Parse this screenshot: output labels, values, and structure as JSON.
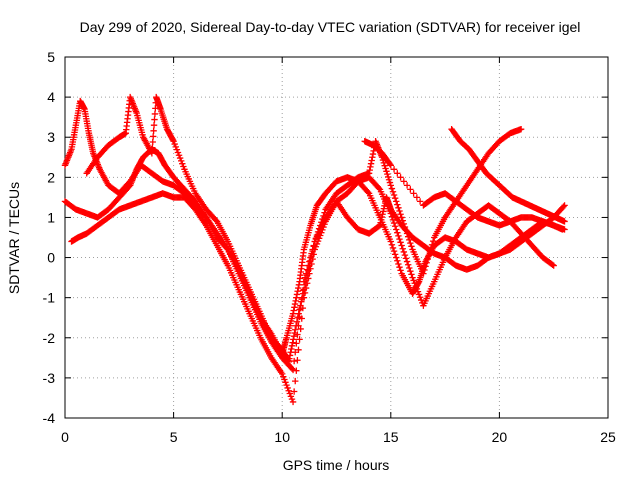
{
  "chart_data": {
    "type": "scatter",
    "title": "Day 299 of 2020, Sidereal Day-to-day VTEC variation (SDTVAR) for receiver igel",
    "xlabel": "GPS time / hours",
    "ylabel": "SDTVAR / TECUs",
    "xlim": [
      0,
      25
    ],
    "ylim": [
      -4,
      5
    ],
    "xticks": [
      "0",
      "5",
      "10",
      "15",
      "20",
      "25"
    ],
    "yticks": [
      "-4",
      "-3",
      "-2",
      "-1",
      "0",
      "1",
      "2",
      "3",
      "4",
      "5"
    ],
    "grid": true,
    "marker": "+",
    "color": "#ff0000",
    "series": [
      {
        "x": [
          0.0,
          0.3,
          0.5,
          0.7,
          0.9,
          1.1,
          1.3,
          1.6,
          2.0,
          2.5,
          3.0,
          3.5,
          4.0,
          4.5,
          5.0,
          5.5,
          6.0,
          6.5,
          7.0,
          7.5,
          8.0,
          8.5,
          9.0,
          9.5,
          10.0,
          10.2,
          10.5,
          10.8,
          11.0,
          11.3,
          11.6,
          12.0,
          12.5,
          13.0,
          13.5,
          14.0,
          14.5,
          15.0,
          15.5,
          16.0,
          16.3,
          16.6,
          17.0,
          17.5,
          18.0,
          18.5,
          19.0,
          19.5,
          20.0,
          20.5,
          21.0,
          21.5,
          22.0,
          22.5,
          22.9
        ],
        "y": [
          2.3,
          2.7,
          3.3,
          3.9,
          3.7,
          3.1,
          2.6,
          2.2,
          1.8,
          1.6,
          1.9,
          2.3,
          2.1,
          1.9,
          1.8,
          1.6,
          1.3,
          1.0,
          0.5,
          0.2,
          -0.3,
          -0.9,
          -1.5,
          -1.9,
          -2.4,
          -2.0,
          -1.4,
          -0.6,
          0.2,
          0.8,
          1.3,
          1.6,
          1.9,
          2.0,
          1.9,
          1.6,
          1.0,
          0.4,
          -0.4,
          -0.9,
          -0.6,
          -0.1,
          0.3,
          0.5,
          0.4,
          0.2,
          0.1,
          0.0,
          0.1,
          0.3,
          0.5,
          0.7,
          0.9,
          0.8,
          0.7
        ]
      },
      {
        "x": [
          0.3,
          0.6,
          1.0,
          1.5,
          2.0,
          2.5,
          3.0,
          3.5,
          4.0,
          4.5,
          5.0,
          5.5,
          6.0,
          6.5,
          7.0,
          7.5,
          8.0,
          8.5,
          9.0,
          9.5,
          10.0,
          10.5,
          11.0,
          11.5,
          12.0,
          12.5,
          13.0,
          13.5,
          14.0,
          14.5,
          15.0,
          15.5,
          16.0,
          16.5,
          17.0,
          17.5,
          18.0,
          18.5,
          19.0,
          19.5,
          20.0,
          20.5,
          21.0,
          21.5,
          22.0,
          22.5
        ],
        "y": [
          0.4,
          0.5,
          0.6,
          0.8,
          1.0,
          1.2,
          1.3,
          1.4,
          1.5,
          1.6,
          1.5,
          1.5,
          1.2,
          0.8,
          0.3,
          -0.2,
          -0.8,
          -1.4,
          -2.0,
          -2.5,
          -2.9,
          -3.6,
          -1.0,
          0.2,
          0.9,
          1.4,
          1.6,
          1.9,
          2.0,
          1.7,
          1.1,
          0.3,
          -0.5,
          -1.2,
          -0.6,
          0.0,
          0.5,
          0.9,
          1.1,
          1.3,
          1.1,
          0.9,
          0.6,
          0.3,
          0.0,
          -0.2
        ]
      },
      {
        "x": [
          0.0,
          0.5,
          1.0,
          1.5,
          2.0,
          2.5,
          3.0,
          3.3,
          3.6,
          4.0,
          4.3,
          4.6,
          5.0,
          5.5,
          6.0,
          6.5,
          7.0,
          7.5,
          8.0,
          8.5,
          9.0,
          9.5,
          10.0,
          10.5,
          11.0,
          11.5,
          12.0,
          12.5,
          13.0,
          13.5,
          14.0,
          14.5,
          14.8,
          15.0,
          15.5,
          16.0,
          16.5,
          17.0,
          17.5,
          18.0,
          18.5,
          19.0,
          19.5,
          20.0,
          20.5,
          21.0,
          21.5,
          22.0,
          22.5,
          23.0
        ],
        "y": [
          1.4,
          1.2,
          1.1,
          1.0,
          1.2,
          1.5,
          1.8,
          2.2,
          2.5,
          2.7,
          2.6,
          2.3,
          2.0,
          1.7,
          1.4,
          1.0,
          0.6,
          0.2,
          -0.4,
          -1.0,
          -1.6,
          -2.1,
          -2.5,
          -2.8,
          -0.6,
          0.4,
          1.0,
          1.4,
          1.0,
          0.7,
          0.6,
          0.8,
          1.5,
          1.2,
          0.8,
          0.5,
          0.3,
          0.1,
          0.0,
          -0.2,
          -0.3,
          -0.2,
          0.0,
          0.1,
          0.2,
          0.4,
          0.6,
          0.8,
          1.0,
          1.3
        ]
      },
      {
        "x": [
          1.0,
          1.5,
          2.0,
          2.5,
          2.8,
          3.0,
          3.3,
          3.6,
          4.0,
          4.2,
          4.4,
          4.7,
          5.0,
          5.5,
          6.0,
          6.5,
          7.0,
          7.5,
          8.0,
          8.5,
          9.0,
          9.5,
          10.0,
          10.3,
          10.6,
          11.0,
          11.5,
          12.0,
          12.5,
          13.0,
          13.5,
          14.0,
          14.3,
          14.6,
          15.0,
          15.5,
          16.0,
          16.5,
          17.0,
          17.5,
          18.0,
          18.5,
          19.0,
          19.5,
          20.0,
          20.5,
          21.0
        ],
        "y": [
          2.1,
          2.5,
          2.8,
          3.0,
          3.1,
          4.0,
          3.6,
          3.0,
          2.6,
          4.0,
          3.7,
          3.2,
          2.9,
          2.2,
          1.6,
          1.2,
          0.9,
          0.4,
          -0.2,
          -0.8,
          -1.4,
          -2.0,
          -2.3,
          -2.6,
          -1.8,
          -0.8,
          0.4,
          1.2,
          1.6,
          1.8,
          2.0,
          2.1,
          2.9,
          2.5,
          1.8,
          1.0,
          0.2,
          -0.4,
          0.5,
          1.0,
          1.4,
          1.8,
          2.2,
          2.6,
          2.9,
          3.1,
          3.2
        ]
      },
      {
        "x": [
          13.8,
          14.2,
          14.6,
          15.0,
          16.5,
          17.0,
          17.5,
          18.0,
          18.5,
          19.0,
          19.5,
          20.0,
          20.5,
          21.0,
          21.5,
          22.0,
          22.5,
          23.0
        ],
        "y": [
          2.9,
          2.8,
          2.6,
          2.3,
          1.3,
          1.5,
          1.6,
          1.4,
          1.2,
          1.0,
          0.9,
          0.8,
          0.9,
          1.0,
          1.0,
          0.9,
          0.8,
          0.7
        ]
      },
      {
        "x": [
          17.8,
          18.2,
          18.6,
          19.0,
          19.4,
          19.8,
          20.2,
          20.6,
          21.0,
          21.4,
          21.8,
          22.2,
          22.6,
          23.0
        ],
        "y": [
          3.2,
          2.9,
          2.7,
          2.4,
          2.1,
          1.9,
          1.7,
          1.5,
          1.4,
          1.3,
          1.2,
          1.1,
          1.0,
          0.9
        ]
      }
    ]
  }
}
